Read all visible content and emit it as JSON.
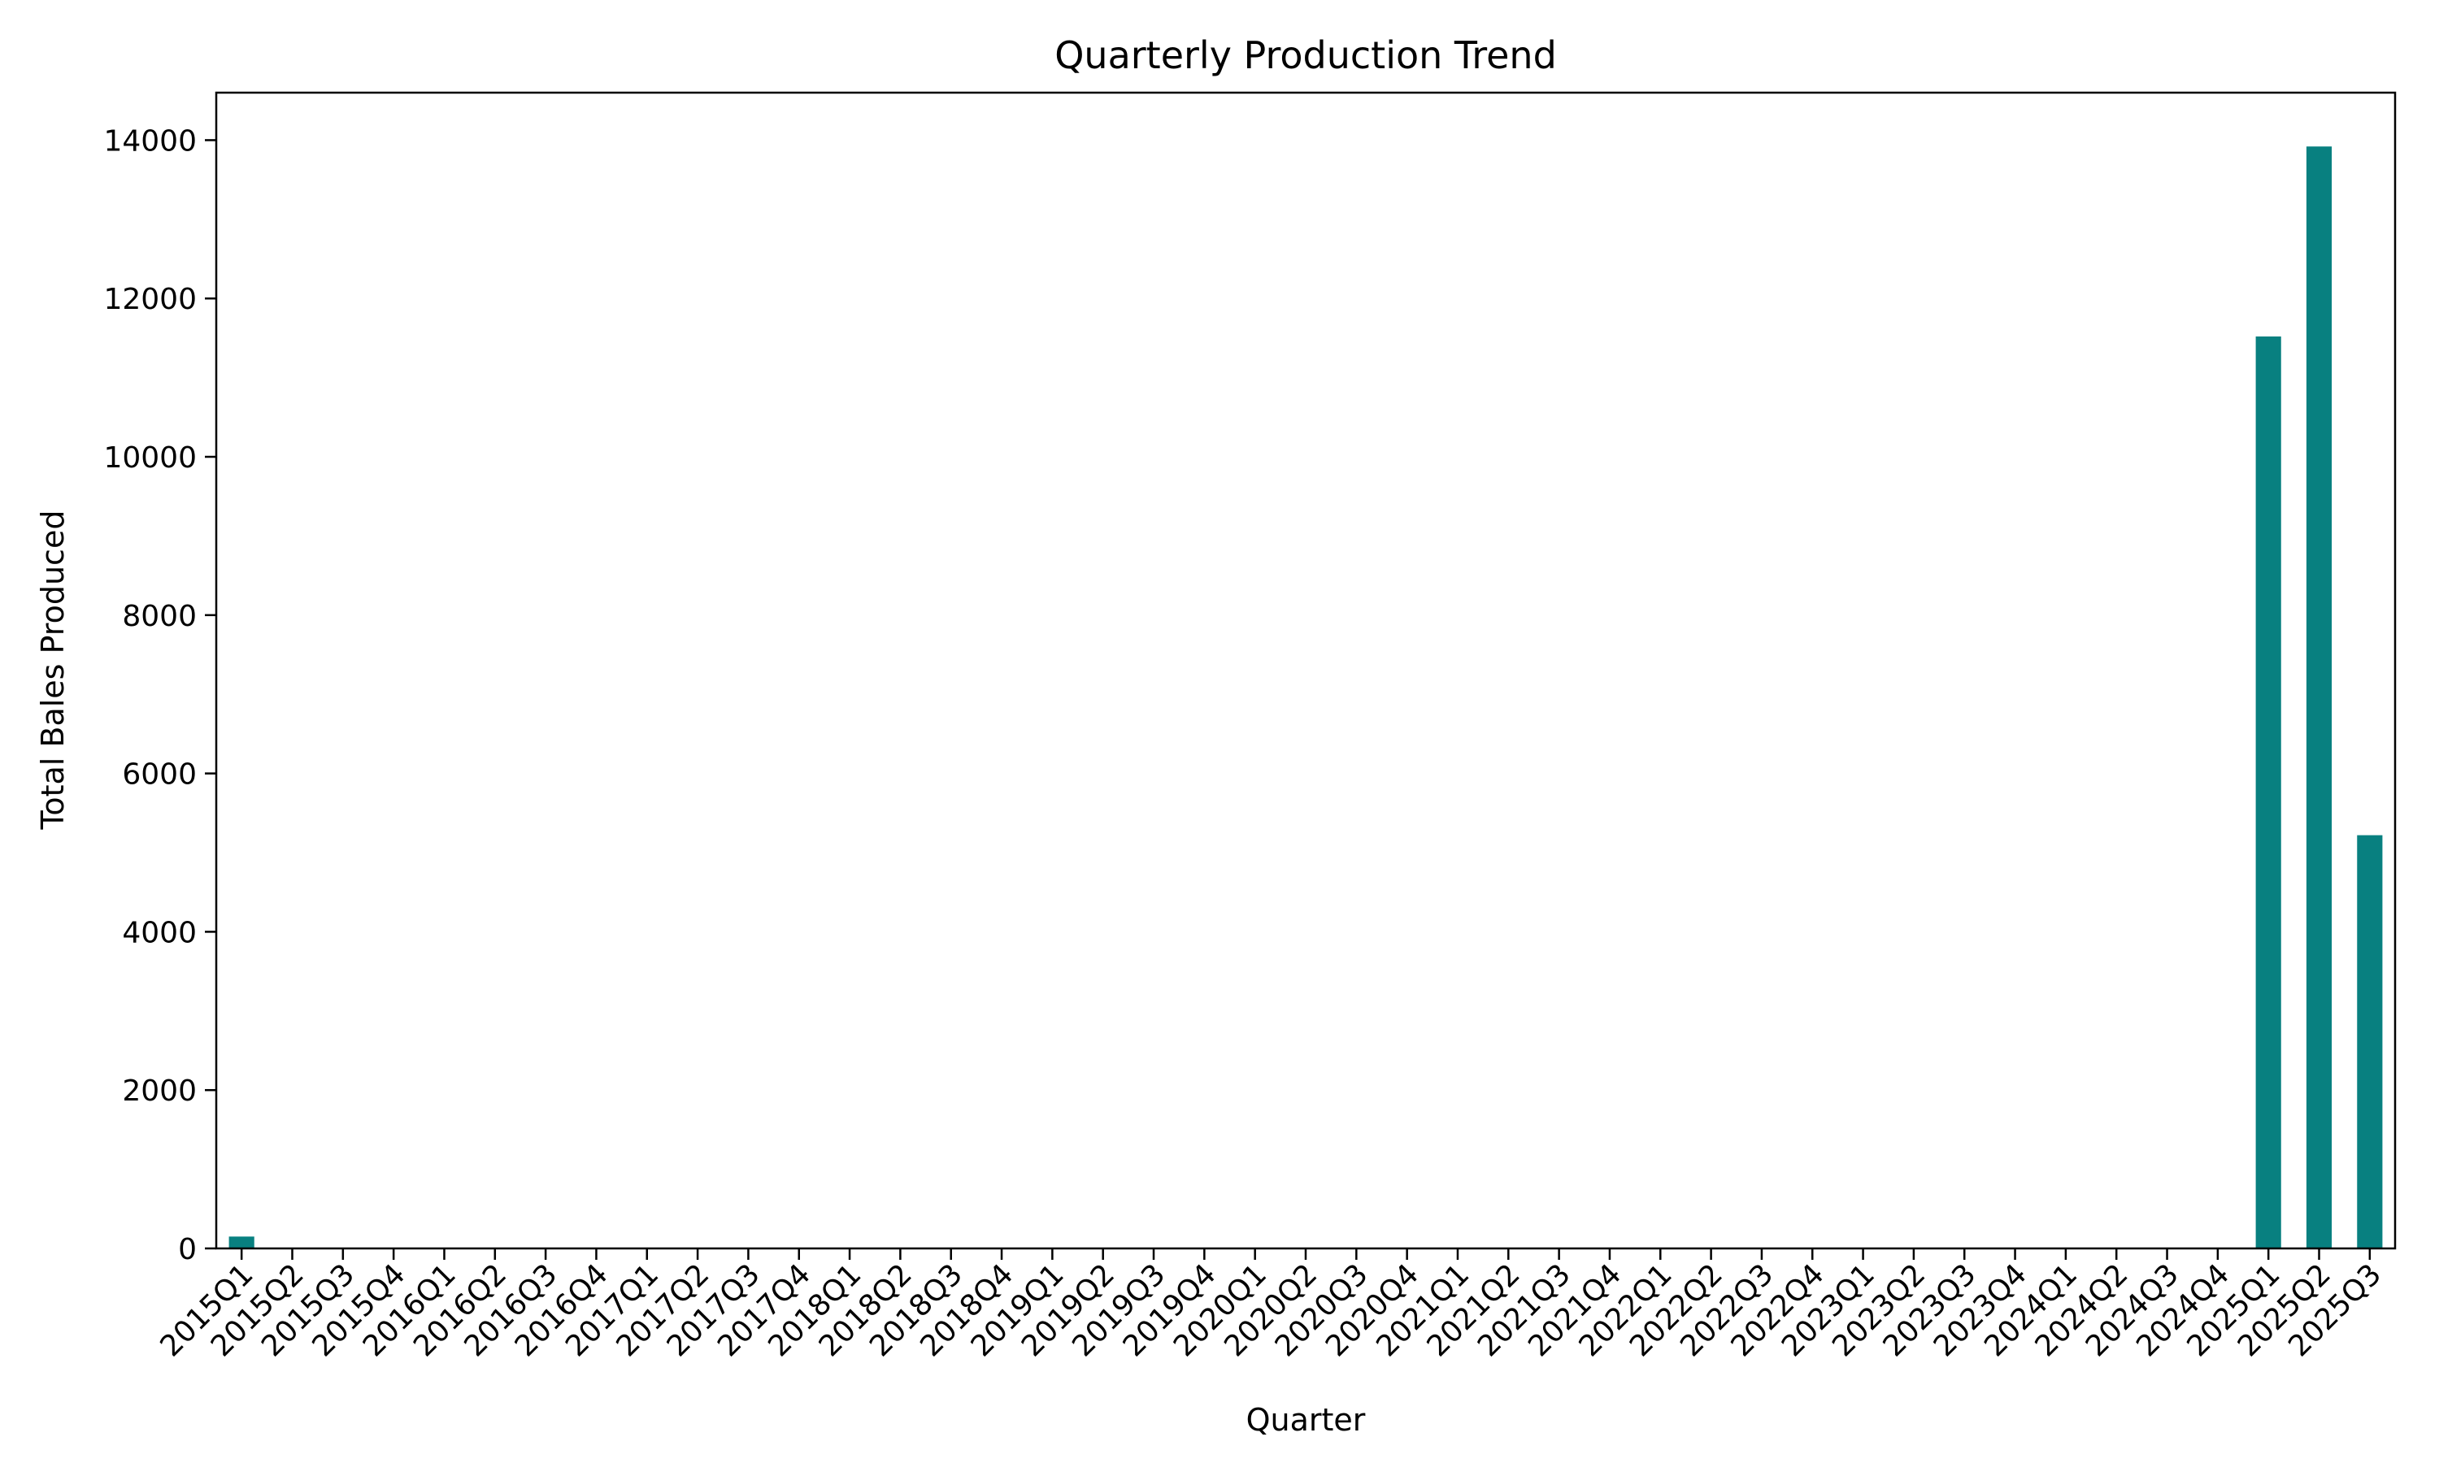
{
  "colors": {
    "bar": "#088080",
    "axis": "#000000",
    "background": "#ffffff"
  },
  "chart_data": {
    "type": "bar",
    "title": "Quarterly Production Trend",
    "xlabel": "Quarter",
    "ylabel": "Total Bales Produced",
    "ylim": [
      0,
      14600
    ],
    "yticks": [
      0,
      2000,
      4000,
      6000,
      8000,
      10000,
      12000,
      14000
    ],
    "grid": false,
    "legend": "none",
    "categories": [
      "2015Q1",
      "2015Q2",
      "2015Q3",
      "2015Q4",
      "2016Q1",
      "2016Q2",
      "2016Q3",
      "2016Q4",
      "2017Q1",
      "2017Q2",
      "2017Q3",
      "2017Q4",
      "2018Q1",
      "2018Q2",
      "2018Q3",
      "2018Q4",
      "2019Q1",
      "2019Q2",
      "2019Q3",
      "2019Q4",
      "2020Q1",
      "2020Q2",
      "2020Q3",
      "2020Q4",
      "2021Q1",
      "2021Q2",
      "2021Q3",
      "2021Q4",
      "2022Q1",
      "2022Q2",
      "2022Q3",
      "2022Q4",
      "2023Q1",
      "2023Q2",
      "2023Q3",
      "2023Q4",
      "2024Q1",
      "2024Q2",
      "2024Q3",
      "2024Q4",
      "2025Q1",
      "2025Q2",
      "2025Q3"
    ],
    "values": [
      150,
      0,
      0,
      0,
      0,
      0,
      0,
      0,
      0,
      0,
      0,
      0,
      0,
      0,
      0,
      0,
      0,
      0,
      0,
      0,
      0,
      0,
      0,
      0,
      0,
      0,
      0,
      0,
      0,
      0,
      0,
      0,
      0,
      0,
      0,
      0,
      0,
      0,
      0,
      0,
      11520,
      13920,
      5220
    ]
  }
}
